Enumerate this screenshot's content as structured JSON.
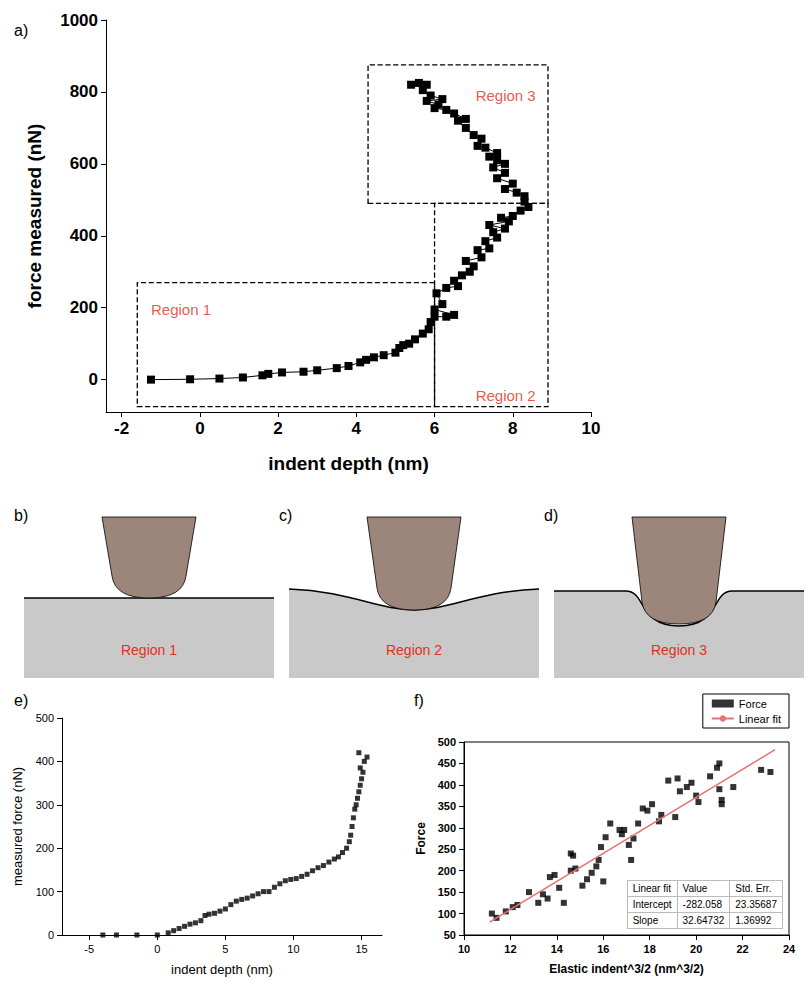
{
  "chart_data": [
    {
      "letter": "a)",
      "type": "line",
      "x_label": "indent depth (nm)",
      "y_label": "force measured (nN)",
      "xlim": [
        -2.4,
        10
      ],
      "xticks": [
        -2,
        0,
        2,
        4,
        6,
        8,
        10
      ],
      "ylim": [
        -90,
        1000
      ],
      "yticks": [
        0,
        200,
        400,
        600,
        800,
        1000
      ],
      "marker": "square",
      "line_style": "solid",
      "color": "#000000",
      "x": [
        -1.25,
        -0.25,
        0.5,
        1.1,
        1.6,
        1.75,
        2.1,
        2.65,
        3.0,
        3.5,
        3.8,
        4.1,
        4.25,
        4.45,
        4.7,
        5.0,
        5.1,
        5.2,
        5.35,
        5.5,
        5.7,
        5.85,
        5.9,
        6.0,
        6.3,
        6.5,
        6.0,
        6.2,
        6.05,
        6.3,
        6.6,
        6.5,
        6.7,
        6.9,
        7.0,
        6.8,
        7.2,
        7.1,
        7.4,
        7.3,
        7.6,
        7.5,
        7.8,
        7.4,
        7.9,
        7.7,
        8.0,
        8.2,
        8.4,
        8.3,
        8.3,
        8.1,
        7.8,
        8.0,
        7.6,
        7.8,
        7.5,
        7.8,
        7.6,
        7.4,
        7.6,
        7.3,
        7.1,
        7.2,
        7.0,
        6.8,
        6.6,
        6.8,
        6.5,
        6.3,
        6.0,
        6.1,
        5.8,
        6.2,
        5.9,
        5.7,
        5.8,
        5.6,
        5.4
      ],
      "values": [
        0,
        1,
        3,
        6,
        12,
        16,
        20,
        22,
        26,
        32,
        38,
        48,
        55,
        62,
        68,
        75,
        88,
        96,
        100,
        112,
        128,
        140,
        160,
        175,
        175,
        180,
        195,
        210,
        240,
        255,
        260,
        275,
        290,
        300,
        315,
        330,
        340,
        360,
        365,
        385,
        395,
        410,
        420,
        430,
        440,
        450,
        455,
        470,
        480,
        495,
        510,
        520,
        530,
        545,
        560,
        575,
        590,
        600,
        610,
        620,
        630,
        645,
        650,
        670,
        680,
        700,
        720,
        725,
        740,
        750,
        755,
        765,
        775,
        780,
        790,
        805,
        820,
        825,
        820
      ],
      "annotations": [
        {
          "text": "Region 1",
          "x": [
            -1.6,
            6
          ],
          "y": [
            -75,
            270
          ],
          "text_x": -1.3,
          "text_y": 195
        },
        {
          "text": "Region 2",
          "x": [
            6,
            8.9
          ],
          "y": [
            -75,
            490
          ],
          "text_x": 7.0,
          "text_y": -45
        },
        {
          "text": "Region 3",
          "x": [
            4.3,
            8.9
          ],
          "y": [
            490,
            875
          ],
          "text_x": 7.0,
          "text_y": 790
        }
      ]
    },
    {
      "letter": "e)",
      "type": "scatter",
      "x_label": "indent depth (nm)",
      "y_label": "measured force (nN)",
      "xlim": [
        -7,
        16.5
      ],
      "xticks": [
        -5,
        0,
        5,
        10,
        15
      ],
      "ylim": [
        0,
        500
      ],
      "yticks": [
        0,
        100,
        200,
        300,
        400,
        500
      ],
      "marker": "square",
      "color": "#000000",
      "x": [
        -4,
        -3,
        -1.5,
        0,
        0.8,
        1.2,
        1.6,
        2.0,
        2.4,
        2.8,
        3.2,
        3.5,
        3.8,
        4.2,
        4.6,
        5.0,
        5.4,
        5.8,
        6.2,
        6.6,
        7.0,
        7.4,
        7.8,
        8.2,
        8.6,
        9.0,
        9.4,
        9.8,
        10.2,
        10.6,
        11.0,
        11.4,
        11.8,
        12.2,
        12.6,
        13.0,
        13.3,
        13.6,
        13.9,
        14.1,
        14.2,
        14.3,
        14.4,
        14.5,
        14.6,
        14.7,
        14.8,
        14.9,
        15.0,
        15.1,
        14.9,
        15.2,
        14.8,
        15.4
      ],
      "values": [
        0,
        0,
        0,
        0,
        5,
        10,
        15,
        20,
        25,
        28,
        33,
        45,
        48,
        50,
        55,
        60,
        70,
        78,
        82,
        85,
        90,
        95,
        100,
        100,
        110,
        118,
        125,
        128,
        130,
        135,
        140,
        148,
        155,
        160,
        168,
        175,
        180,
        190,
        200,
        215,
        230,
        250,
        270,
        290,
        300,
        315,
        330,
        345,
        360,
        375,
        385,
        400,
        420,
        410
      ]
    },
    {
      "letter": "f)",
      "type": "scatter",
      "x_label": "Elastic indent^3/2 (nm^3/2)",
      "y_label": "Force",
      "xlim": [
        10,
        24
      ],
      "xticks": [
        10,
        12,
        14,
        16,
        18,
        20,
        22,
        24
      ],
      "ylim": [
        50,
        500
      ],
      "yticks": [
        50,
        100,
        150,
        200,
        250,
        300,
        350,
        400,
        450,
        500
      ],
      "legend": "top-right",
      "series": [
        {
          "name": "Force",
          "type": "scatter",
          "marker": "square",
          "color": "#000000",
          "x": [
            11.2,
            11.4,
            11.8,
            12.1,
            12.3,
            12.8,
            13.2,
            13.4,
            13.6,
            13.7,
            13.9,
            14.1,
            14.3,
            14.6,
            14.6,
            14.7,
            14.8,
            15.1,
            15.3,
            15.5,
            15.7,
            15.8,
            15.9,
            16.0,
            16.1,
            16.3,
            16.7,
            16.8,
            16.9,
            17.1,
            17.2,
            17.3,
            17.5,
            17.7,
            17.9,
            18.1,
            18.4,
            18.5,
            18.8,
            19.1,
            19.2,
            19.3,
            19.6,
            19.8,
            20.0,
            20.1,
            20.6,
            20.9,
            21.0,
            21.0,
            21.1,
            21.1,
            21.6,
            22.8,
            23.2
          ],
          "values": [
            100,
            90,
            105,
            115,
            120,
            150,
            125,
            145,
            135,
            185,
            190,
            160,
            125,
            240,
            200,
            235,
            205,
            165,
            180,
            195,
            210,
            225,
            255,
            175,
            278,
            310,
            295,
            285,
            295,
            260,
            225,
            275,
            310,
            345,
            340,
            355,
            315,
            330,
            410,
            325,
            415,
            385,
            395,
            405,
            375,
            360,
            420,
            440,
            450,
            390,
            355,
            365,
            395,
            435,
            430
          ]
        },
        {
          "name": "Linear fit",
          "type": "line",
          "line_style": "solid",
          "color": "#e57373",
          "x": [
            11.1,
            23.4
          ],
          "values": [
            80,
            482
          ]
        }
      ],
      "table": {
        "header": [
          "Linear fit",
          "Value",
          "Std. Err."
        ],
        "rows": [
          [
            "Intercept",
            "-282.058",
            "23.35687"
          ],
          [
            "Slope",
            "32.64732",
            "1.36992"
          ]
        ]
      }
    }
  ],
  "diagrams": [
    {
      "letter": "b)",
      "label": "Region 1"
    },
    {
      "letter": "c)",
      "label": "Region 2"
    },
    {
      "letter": "d)",
      "label": "Region 3"
    }
  ]
}
